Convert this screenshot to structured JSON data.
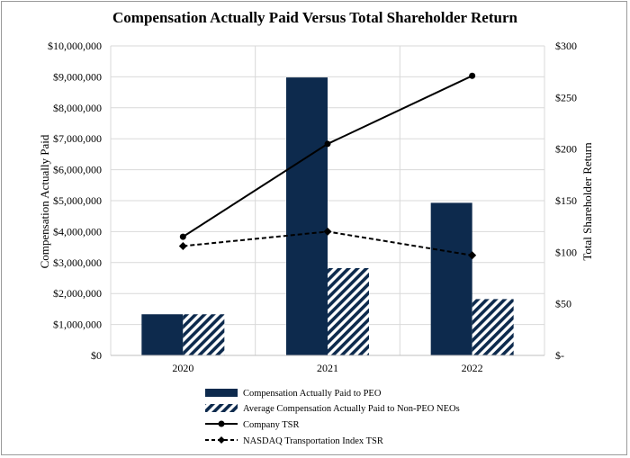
{
  "chart_data": {
    "type": "bar",
    "title": "Compensation Actually Paid Versus Total Shareholder Return",
    "categories": [
      "2020",
      "2021",
      "2022"
    ],
    "ylabel": "Compensation Actually Paid",
    "y2label": "Total Shareholder Return",
    "ylim": [
      0,
      10000000
    ],
    "y2lim": [
      0,
      300
    ],
    "yticks": [
      "$0",
      "$1,000,000",
      "$2,000,000",
      "$3,000,000",
      "$4,000,000",
      "$5,000,000",
      "$6,000,000",
      "$7,000,000",
      "$8,000,000",
      "$9,000,000",
      "$10,000,000"
    ],
    "y2ticks": [
      "$-",
      "$50",
      "$100",
      "$150",
      "$200",
      "$250",
      "$300"
    ],
    "series": [
      {
        "name": "Compensation Actually Paid to PEO",
        "kind": "bar",
        "axis": "left",
        "color": "#0d2a4d",
        "values": [
          1330000,
          8980000,
          4930000
        ]
      },
      {
        "name": "Average Compensation Actually Paid to Non-PEO NEOs",
        "kind": "bar-hatched",
        "axis": "left",
        "color": "#0d2a4d",
        "values": [
          1330000,
          2820000,
          1820000
        ]
      },
      {
        "name": "Company TSR",
        "kind": "line",
        "axis": "right",
        "color": "#000000",
        "values": [
          115,
          205,
          271
        ]
      },
      {
        "name": "NASDAQ Transportation Index TSR",
        "kind": "dashed-line",
        "axis": "right",
        "color": "#000000",
        "values": [
          106,
          120,
          97
        ]
      }
    ],
    "legend_position": "bottom"
  }
}
